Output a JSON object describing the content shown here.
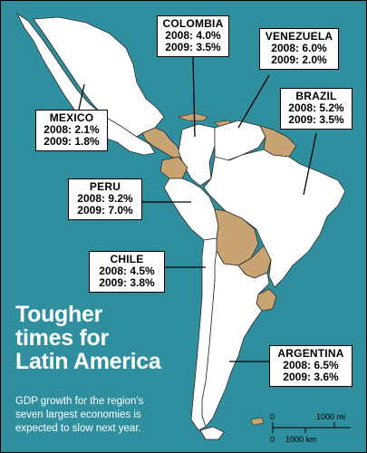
{
  "title": "Tougher times for Latin America",
  "title_lines": [
    "Tougher",
    "times for",
    "Latin America"
  ],
  "subtitle_lines": [
    "GDP growth for the region's",
    "seven largest economies is",
    "expected to slow next year."
  ],
  "colors": {
    "ocean": "#2f8f9e",
    "highlight": "#ffffff",
    "other_land": "#c8a472",
    "border": "#2b2b2b"
  },
  "countries": {
    "mexico": {
      "name": "MEXICO",
      "line2008": "2008: 2.1%",
      "line2009": "2009: 1.8%",
      "gdp_2008": 2.1,
      "gdp_2009": 1.8
    },
    "colombia": {
      "name": "COLOMBIA",
      "line2008": "2008: 4.0%",
      "line2009": "2009: 3.5%",
      "gdp_2008": 4.0,
      "gdp_2009": 3.5
    },
    "venezuela": {
      "name": "VENEZUELA",
      "line2008": "2008: 6.0%",
      "line2009": "2009: 2.0%",
      "gdp_2008": 6.0,
      "gdp_2009": 2.0
    },
    "brazil": {
      "name": "BRAZIL",
      "line2008": "2008: 5.2%",
      "line2009": "2009: 3.5%",
      "gdp_2008": 5.2,
      "gdp_2009": 3.5
    },
    "peru": {
      "name": "PERU",
      "line2008": "2008: 9.2%",
      "line2009": "2009: 7.0%",
      "gdp_2008": 9.2,
      "gdp_2009": 7.0
    },
    "chile": {
      "name": "CHILE",
      "line2008": "2008: 4.5%",
      "line2009": "2009: 3.8%",
      "gdp_2008": 4.5,
      "gdp_2009": 3.8
    },
    "argentina": {
      "name": "ARGENTINA",
      "line2008": "2008: 6.5%",
      "line2009": "2009: 3.6%",
      "gdp_2008": 6.5,
      "gdp_2009": 3.6
    }
  },
  "scale": {
    "mi_zero": "0",
    "mi_label": "1000 mi",
    "km_zero": "0",
    "km_label": "1000 km"
  }
}
